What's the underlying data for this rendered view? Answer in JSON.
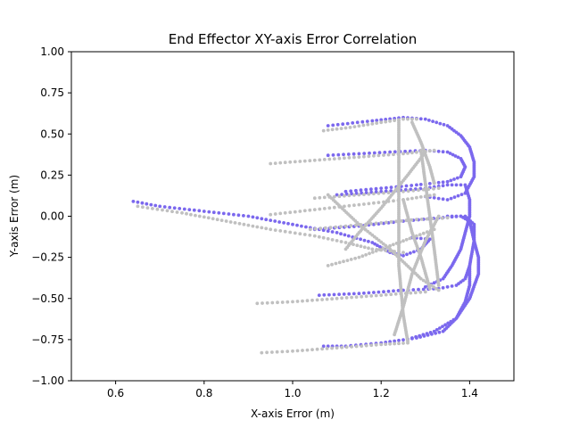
{
  "chart_data": {
    "type": "scatter",
    "title": "End Effector XY-axis Error Correlation",
    "xlabel": "X-axis Error (m)",
    "ylabel": "Y-axis Error (m)",
    "xlim": [
      0.5,
      1.5
    ],
    "ylim": [
      -1.0,
      1.0
    ],
    "xticks": [
      "0.6",
      "0.8",
      "1.0",
      "1.2",
      "1.4"
    ],
    "yticks": [
      "1.00",
      "0.75",
      "0.50",
      "0.25",
      "0.00",
      "−0.25",
      "−0.50",
      "−0.75",
      "−1.00"
    ],
    "grid": false,
    "series": [
      {
        "color": "#7b68ee",
        "segments": [
          [
            [
              0.64,
              0.09
            ],
            [
              0.7,
              0.06
            ],
            [
              0.8,
              0.03
            ],
            [
              0.9,
              0.0
            ],
            [
              1.0,
              -0.05
            ],
            [
              1.1,
              -0.1
            ],
            [
              1.18,
              -0.16
            ],
            [
              1.22,
              -0.22
            ],
            [
              1.25,
              -0.24
            ],
            [
              1.29,
              -0.2
            ],
            [
              1.31,
              -0.14
            ],
            [
              1.27,
              -0.13
            ]
          ],
          [
            [
              1.08,
              0.37
            ],
            [
              1.15,
              0.38
            ],
            [
              1.22,
              0.39
            ],
            [
              1.3,
              0.4
            ],
            [
              1.35,
              0.39
            ],
            [
              1.38,
              0.35
            ],
            [
              1.39,
              0.3
            ],
            [
              1.38,
              0.24
            ],
            [
              1.35,
              0.21
            ],
            [
              1.28,
              0.19
            ],
            [
              1.2,
              0.17
            ],
            [
              1.12,
              0.15
            ]
          ],
          [
            [
              1.08,
              0.55
            ],
            [
              1.18,
              0.58
            ],
            [
              1.25,
              0.6
            ],
            [
              1.3,
              0.59
            ],
            [
              1.35,
              0.55
            ],
            [
              1.38,
              0.49
            ],
            [
              1.4,
              0.42
            ],
            [
              1.41,
              0.33
            ],
            [
              1.41,
              0.24
            ],
            [
              1.39,
              0.14
            ],
            [
              1.35,
              0.1
            ],
            [
              1.3,
              0.12
            ]
          ],
          [
            [
              1.1,
              0.13
            ],
            [
              1.2,
              0.15
            ],
            [
              1.3,
              0.17
            ],
            [
              1.35,
              0.19
            ],
            [
              1.39,
              0.19
            ],
            [
              1.4,
              0.1
            ],
            [
              1.4,
              0.0
            ],
            [
              1.39,
              -0.1
            ],
            [
              1.38,
              -0.2
            ],
            [
              1.36,
              -0.3
            ],
            [
              1.34,
              -0.38
            ],
            [
              1.3,
              -0.43
            ]
          ],
          [
            [
              1.05,
              -0.08
            ],
            [
              1.15,
              -0.06
            ],
            [
              1.25,
              -0.03
            ],
            [
              1.33,
              -0.01
            ],
            [
              1.38,
              0.0
            ],
            [
              1.4,
              -0.03
            ],
            [
              1.41,
              -0.15
            ],
            [
              1.42,
              -0.25
            ],
            [
              1.42,
              -0.35
            ],
            [
              1.4,
              -0.5
            ],
            [
              1.37,
              -0.62
            ],
            [
              1.32,
              -0.7
            ],
            [
              1.27,
              -0.74
            ]
          ],
          [
            [
              1.06,
              -0.48
            ],
            [
              1.15,
              -0.47
            ],
            [
              1.25,
              -0.45
            ],
            [
              1.33,
              -0.44
            ],
            [
              1.37,
              -0.42
            ],
            [
              1.39,
              -0.38
            ],
            [
              1.4,
              -0.3
            ],
            [
              1.41,
              -0.15
            ],
            [
              1.41,
              -0.05
            ],
            [
              1.39,
              0.0
            ],
            [
              1.35,
              0.0
            ]
          ],
          [
            [
              1.07,
              -0.79
            ],
            [
              1.12,
              -0.79
            ],
            [
              1.2,
              -0.77
            ],
            [
              1.28,
              -0.74
            ],
            [
              1.34,
              -0.7
            ],
            [
              1.37,
              -0.62
            ],
            [
              1.39,
              -0.52
            ],
            [
              1.4,
              -0.42
            ],
            [
              1.4,
              -0.3
            ]
          ]
        ]
      },
      {
        "color": "#c0c0c0",
        "segments": [
          [
            [
              0.65,
              0.06
            ],
            [
              0.75,
              0.02
            ],
            [
              0.85,
              -0.03
            ],
            [
              0.95,
              -0.08
            ],
            [
              1.05,
              -0.12
            ],
            [
              1.12,
              -0.16
            ],
            [
              1.18,
              -0.2
            ],
            [
              1.25,
              -0.22
            ]
          ],
          [
            [
              1.07,
              0.52
            ],
            [
              1.13,
              0.54
            ],
            [
              1.2,
              0.57
            ],
            [
              1.25,
              0.59
            ],
            [
              1.28,
              0.59
            ]
          ],
          [
            [
              0.95,
              0.32
            ],
            [
              1.05,
              0.34
            ],
            [
              1.15,
              0.36
            ],
            [
              1.25,
              0.38
            ],
            [
              1.32,
              0.4
            ]
          ],
          [
            [
              1.05,
              0.11
            ],
            [
              1.15,
              0.13
            ],
            [
              1.25,
              0.15
            ],
            [
              1.33,
              0.17
            ]
          ],
          [
            [
              0.95,
              0.01
            ],
            [
              1.05,
              0.04
            ],
            [
              1.15,
              0.07
            ],
            [
              1.25,
              0.1
            ],
            [
              1.32,
              0.13
            ]
          ],
          [
            [
              1.04,
              -0.08
            ],
            [
              1.12,
              -0.06
            ],
            [
              1.2,
              -0.04
            ],
            [
              1.28,
              -0.02
            ],
            [
              1.35,
              -0.01
            ]
          ],
          [
            [
              1.08,
              -0.3
            ],
            [
              1.15,
              -0.25
            ],
            [
              1.22,
              -0.18
            ],
            [
              1.28,
              -0.12
            ],
            [
              1.32,
              -0.08
            ]
          ],
          [
            [
              0.92,
              -0.53
            ],
            [
              1.0,
              -0.52
            ],
            [
              1.1,
              -0.5
            ],
            [
              1.2,
              -0.48
            ],
            [
              1.3,
              -0.46
            ]
          ],
          [
            [
              0.93,
              -0.83
            ],
            [
              1.0,
              -0.82
            ],
            [
              1.1,
              -0.8
            ],
            [
              1.2,
              -0.78
            ],
            [
              1.26,
              -0.77
            ]
          ],
          [
            [
              1.24,
              0.58
            ],
            [
              1.24,
              0.3
            ],
            [
              1.24,
              0.0
            ],
            [
              1.24,
              -0.3
            ],
            [
              1.25,
              -0.6
            ],
            [
              1.26,
              -0.76
            ]
          ],
          [
            [
              1.27,
              0.57
            ],
            [
              1.29,
              0.45
            ],
            [
              1.31,
              0.3
            ],
            [
              1.32,
              0.2
            ]
          ],
          [
            [
              1.29,
              0.4
            ],
            [
              1.3,
              0.2
            ],
            [
              1.31,
              0.0
            ],
            [
              1.32,
              -0.2
            ],
            [
              1.33,
              -0.42
            ]
          ],
          [
            [
              1.08,
              0.13
            ],
            [
              1.15,
              -0.05
            ],
            [
              1.22,
              -0.2
            ],
            [
              1.29,
              -0.38
            ],
            [
              1.33,
              -0.45
            ]
          ],
          [
            [
              1.25,
              0.1
            ],
            [
              1.27,
              -0.1
            ],
            [
              1.29,
              -0.25
            ],
            [
              1.31,
              -0.44
            ]
          ],
          [
            [
              1.33,
              0.0
            ],
            [
              1.3,
              -0.15
            ],
            [
              1.27,
              -0.35
            ],
            [
              1.25,
              -0.55
            ],
            [
              1.23,
              -0.72
            ]
          ],
          [
            [
              1.3,
              0.39
            ],
            [
              1.26,
              0.25
            ],
            [
              1.2,
              0.05
            ],
            [
              1.15,
              -0.1
            ],
            [
              1.12,
              -0.2
            ]
          ]
        ]
      }
    ]
  }
}
